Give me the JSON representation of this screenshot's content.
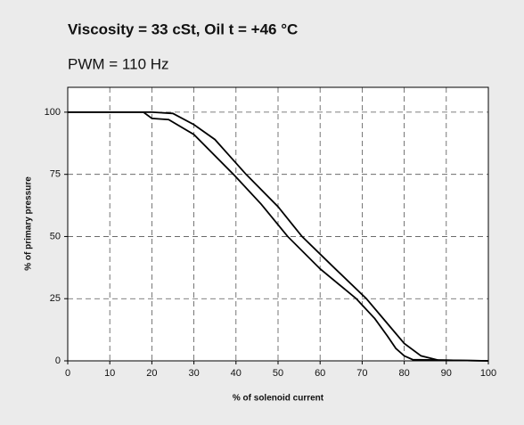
{
  "chart_data": {
    "type": "line",
    "title": "Viscosity = 33 cSt, Oil t = +46 °C",
    "subtitle": "PWM = 110 Hz",
    "x_label": "% of solenoid current",
    "y_label": "% of primary pressure",
    "xlim": [
      0,
      100
    ],
    "xticks": [
      0,
      10,
      20,
      30,
      40,
      50,
      60,
      70,
      80,
      90,
      100
    ],
    "ylim": [
      0,
      110
    ],
    "yticks": [
      0,
      25,
      50,
      75,
      100
    ],
    "grid": true,
    "series": [
      {
        "color": "#000000",
        "x": [
          0,
          20,
          25,
          30,
          35,
          42.4,
          50,
          55.7,
          63,
          71,
          76,
          80,
          84,
          88,
          100
        ],
        "values": [
          100,
          100,
          99.5,
          95,
          89,
          75,
          62,
          50,
          38,
          25,
          15,
          7,
          2,
          0.3,
          0
        ]
      },
      {
        "color": "#000000",
        "x": [
          0,
          18,
          20,
          24,
          30,
          39.4,
          46,
          52.3,
          60,
          68.6,
          73,
          76,
          78,
          80,
          82,
          100
        ],
        "values": [
          100,
          100,
          97.5,
          97,
          91,
          75,
          63,
          50,
          37,
          25,
          17,
          10,
          5,
          2,
          0.5,
          0
        ]
      }
    ]
  }
}
